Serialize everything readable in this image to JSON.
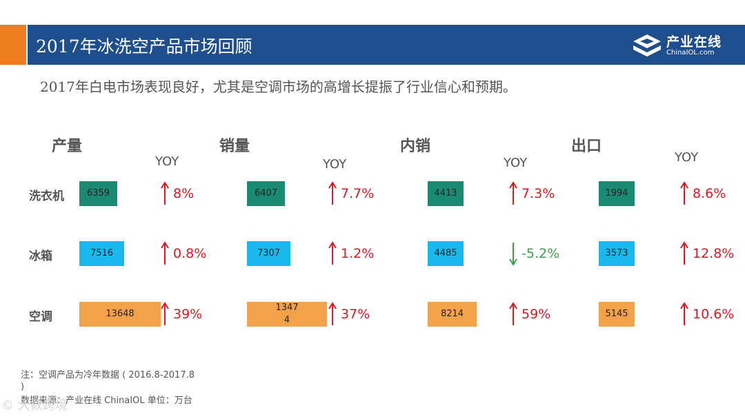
{
  "header": {
    "title": "2017年冰洗空产品市场回顾"
  },
  "logo": {
    "name": "产业在线",
    "sub": "ChinaIOL.com"
  },
  "subtitle": "2017年白电市场表现良好，尤其是空调市场的高增长提振了行业信心和预期。",
  "yoy_label": "YOY",
  "row_labels": [
    "洗衣机",
    "冰箱",
    "空调"
  ],
  "colors": {
    "washer": "#1a8a72",
    "fridge": "#1ab8ee",
    "ac": "#f4a24a",
    "up": "#d71920",
    "down": "#3aa346"
  },
  "chart_data": {
    "type": "bar",
    "unit": "万台",
    "categories": [
      "洗衣机",
      "冰箱",
      "空调"
    ],
    "groups": [
      {
        "name": "产量",
        "values": [
          6359,
          7516,
          13648
        ],
        "value_labels": [
          "6359",
          "7516",
          "13648"
        ],
        "yoy": [
          "8%",
          "0.8%",
          "39%"
        ]
      },
      {
        "name": "销量",
        "values": [
          6407,
          7307,
          13474
        ],
        "value_labels": [
          "6407",
          "7307",
          "1347\n4"
        ],
        "yoy": [
          "7.7%",
          "1.2%",
          "37%"
        ]
      },
      {
        "name": "内销",
        "values": [
          4413,
          4485,
          8214
        ],
        "value_labels": [
          "4413",
          "4485",
          "8214"
        ],
        "yoy": [
          "7.3%",
          "-5.2%",
          "59%"
        ]
      },
      {
        "name": "出口",
        "values": [
          1994,
          3573,
          5145
        ],
        "value_labels": [
          "1994",
          "3573",
          "5145"
        ],
        "yoy": [
          "8.6%",
          "12.8%",
          "10.6%"
        ]
      }
    ]
  },
  "footer": {
    "note": "注：空调产品为冷年数据 ( 2016.8-2017.8 )",
    "source": "数据来源：产业在线 ChinaIOL 单位：万台",
    "watermark": "© 大数跨境"
  }
}
